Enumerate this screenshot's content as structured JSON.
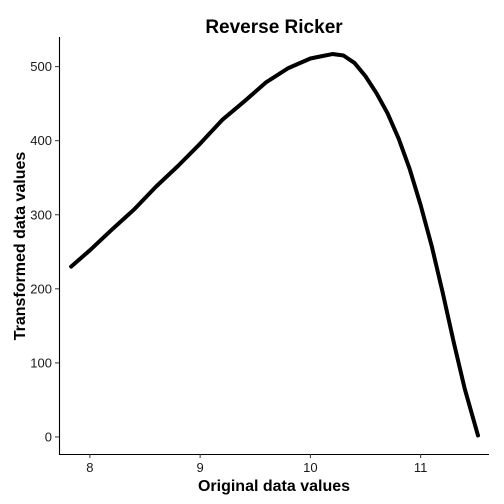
{
  "chart_data": {
    "type": "line",
    "title": "Reverse Ricker",
    "xlabel": "Original data values",
    "ylabel": "Transformed data values",
    "xlim": [
      7.72,
      11.62
    ],
    "ylim": [
      -23,
      540
    ],
    "xticks": [
      8,
      9,
      10,
      11
    ],
    "yticks": [
      0,
      100,
      200,
      300,
      400,
      500
    ],
    "xtick_labels": [
      "8",
      "9",
      "10",
      "11"
    ],
    "ytick_labels": [
      "0",
      "100",
      "200",
      "300",
      "400",
      "500"
    ],
    "grid": false,
    "legend": "none",
    "line_color": "#000000",
    "series": [
      {
        "x": [
          7.83,
          8.0,
          8.2,
          8.4,
          8.6,
          8.8,
          9.0,
          9.2,
          9.4,
          9.6,
          9.8,
          10.0,
          10.1,
          10.2,
          10.3,
          10.4,
          10.5,
          10.6,
          10.7,
          10.8,
          10.9,
          11.0,
          11.1,
          11.2,
          11.3,
          11.4,
          11.52
        ],
        "y": [
          230,
          252,
          280,
          307,
          338,
          366,
          396,
          428,
          453,
          479,
          498,
          511,
          514,
          517,
          515,
          505,
          487,
          464,
          437,
          403,
          362,
          313,
          258,
          195,
          128,
          65,
          2
        ]
      }
    ]
  }
}
